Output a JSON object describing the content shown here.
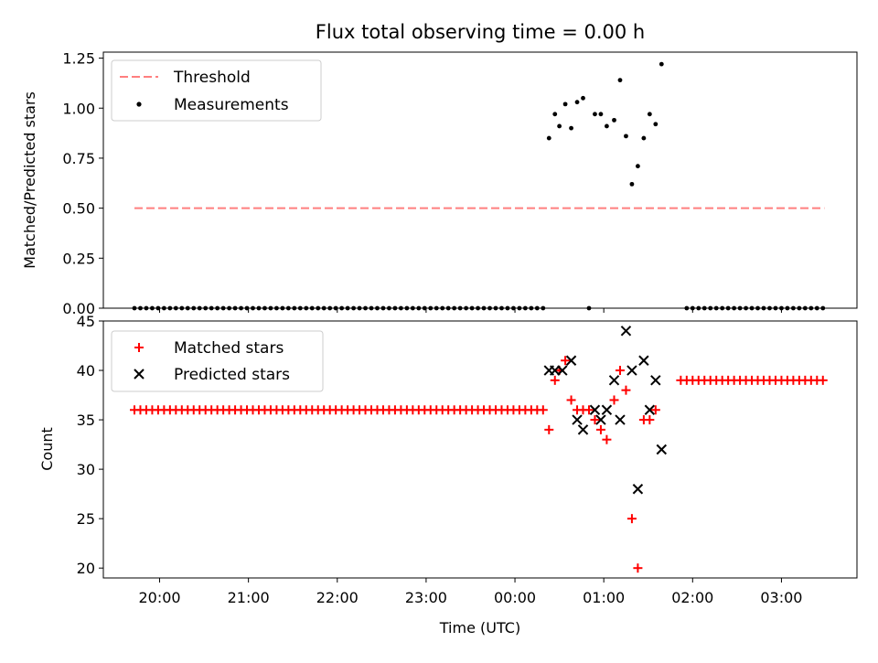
{
  "chart_data": [
    {
      "type": "scatter",
      "title": "Flux total observing time = 0.00 h",
      "ylabel": "Matched/Predicted stars",
      "xlabel": "",
      "ylim": [
        0,
        1.28
      ],
      "yticks": [
        "0.00",
        "0.25",
        "0.50",
        "0.75",
        "1.00",
        "1.25"
      ],
      "ytick_values": [
        0,
        0.25,
        0.5,
        0.75,
        1.0,
        1.25
      ],
      "legend_position": "upper-left",
      "threshold": {
        "name": "Threshold",
        "value": 0.5,
        "color": "#ff7f7f",
        "x_start": "19:43",
        "x_end": "03:29"
      },
      "measurements": {
        "name": "Measurements",
        "color": "#000000",
        "zero_start": "19:43",
        "zero_end": "00:19",
        "zero_step_min": 4,
        "zero_start_b": "01:56",
        "zero_end_b": "03:29",
        "points": [
          [
            "00:23",
            0.85
          ],
          [
            "00:27",
            0.97
          ],
          [
            "00:30",
            0.91
          ],
          [
            "00:34",
            1.02
          ],
          [
            "00:38",
            0.9
          ],
          [
            "00:42",
            1.03
          ],
          [
            "00:46",
            1.05
          ],
          [
            "00:50",
            0.0
          ],
          [
            "00:54",
            0.97
          ],
          [
            "00:58",
            0.97
          ],
          [
            "01:02",
            0.91
          ],
          [
            "01:07",
            0.94
          ],
          [
            "01:11",
            1.14
          ],
          [
            "01:15",
            0.86
          ],
          [
            "01:19",
            0.62
          ],
          [
            "01:23",
            0.71
          ],
          [
            "01:27",
            0.85
          ],
          [
            "01:31",
            0.97
          ],
          [
            "01:35",
            0.92
          ],
          [
            "01:39",
            1.22
          ]
        ]
      }
    },
    {
      "type": "scatter",
      "title": "",
      "xlabel": "Time (UTC)",
      "ylabel": "Count",
      "ylim": [
        19,
        45
      ],
      "yticks": [
        "20",
        "25",
        "30",
        "35",
        "40",
        "45"
      ],
      "ytick_values": [
        20,
        25,
        30,
        35,
        40,
        45
      ],
      "xticks": [
        "20:00",
        "21:00",
        "22:00",
        "23:00",
        "00:00",
        "01:00",
        "02:00",
        "03:00"
      ],
      "xlim": [
        "19:22",
        "03:51"
      ],
      "legend_position": "upper-left",
      "matched": {
        "name": "Matched stars",
        "color": "#ff0000",
        "baseline_a": {
          "start": "19:43",
          "end": "00:19",
          "value": 36
        },
        "baseline_b": {
          "start": "01:52",
          "end": "03:29",
          "value": 39
        },
        "points": [
          [
            "00:23",
            34
          ],
          [
            "00:27",
            39
          ],
          [
            "00:30",
            40
          ],
          [
            "00:34",
            41
          ],
          [
            "00:38",
            37
          ],
          [
            "00:42",
            36
          ],
          [
            "00:46",
            36
          ],
          [
            "00:50",
            36
          ],
          [
            "00:54",
            35
          ],
          [
            "00:58",
            34
          ],
          [
            "01:02",
            33
          ],
          [
            "01:07",
            37
          ],
          [
            "01:11",
            40
          ],
          [
            "01:15",
            38
          ],
          [
            "01:19",
            25
          ],
          [
            "01:23",
            20
          ],
          [
            "01:27",
            35
          ],
          [
            "01:31",
            35
          ],
          [
            "01:35",
            36
          ]
        ]
      },
      "predicted": {
        "name": "Predicted stars",
        "color": "#000000",
        "points": [
          [
            "00:23",
            40
          ],
          [
            "00:27",
            40
          ],
          [
            "00:32",
            40
          ],
          [
            "00:38",
            41
          ],
          [
            "00:42",
            35
          ],
          [
            "00:46",
            34
          ],
          [
            "00:54",
            36
          ],
          [
            "00:58",
            35
          ],
          [
            "01:02",
            36
          ],
          [
            "01:07",
            39
          ],
          [
            "01:11",
            35
          ],
          [
            "01:15",
            44
          ],
          [
            "01:19",
            40
          ],
          [
            "01:23",
            28
          ],
          [
            "01:27",
            41
          ],
          [
            "01:31",
            36
          ],
          [
            "01:35",
            39
          ],
          [
            "01:39",
            32
          ]
        ]
      }
    }
  ]
}
